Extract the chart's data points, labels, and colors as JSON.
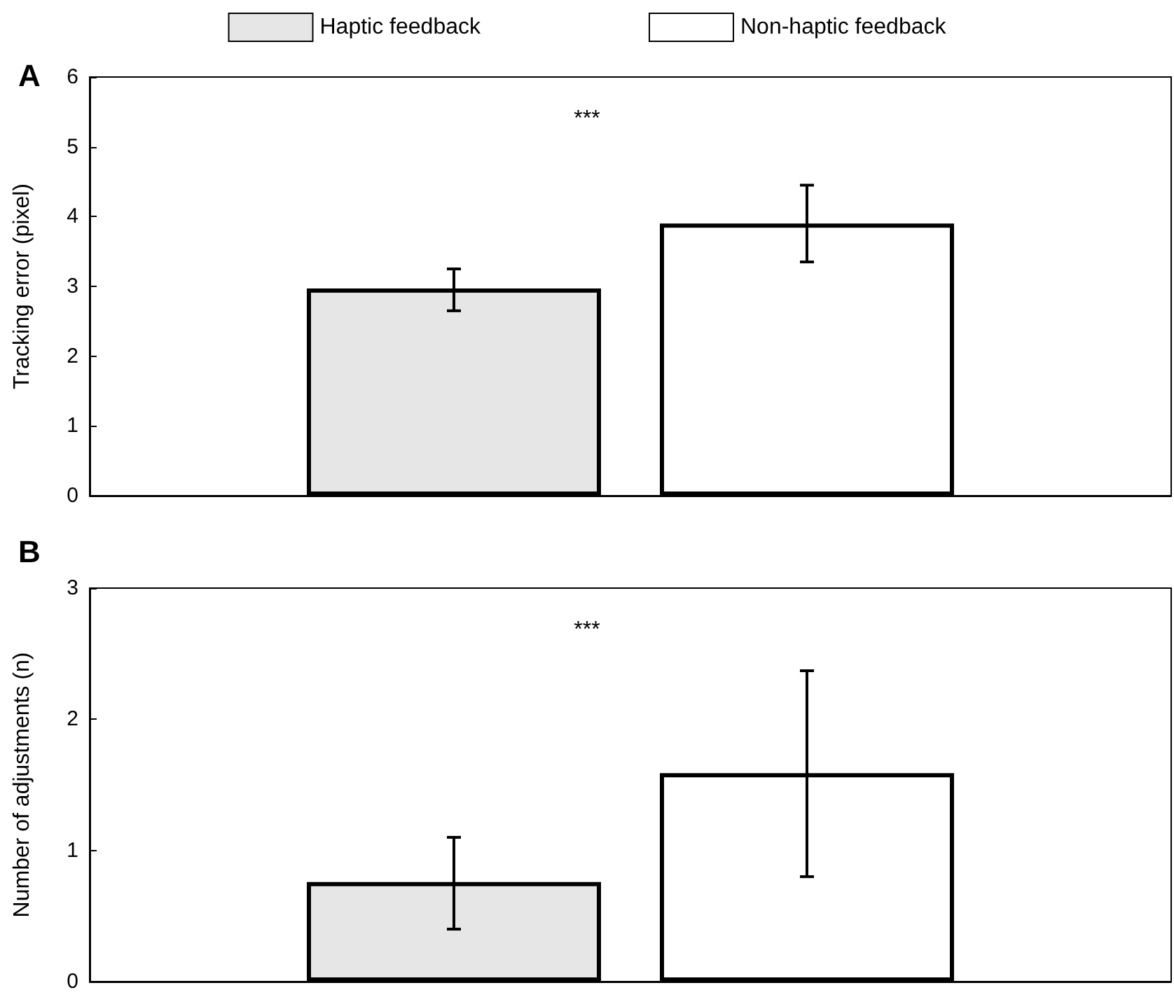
{
  "chart_data": [
    {
      "type": "bar",
      "title": "A",
      "ylabel": "Tracking error (pixel)",
      "categories": [
        null
      ],
      "legend": "top",
      "grid": false,
      "ylim": [
        0,
        6
      ],
      "yticks": [
        0,
        1,
        2,
        3,
        4,
        5,
        6
      ],
      "annotations": [
        "***"
      ],
      "series": [
        {
          "name": "Haptic feedback",
          "color": "#e6e6e6",
          "values": [
            2.97
          ],
          "errors": [
            [
              2.65,
              3.25
            ]
          ]
        },
        {
          "name": "Non-haptic feedback",
          "color": "#ffffff",
          "values": [
            3.9
          ],
          "errors": [
            [
              3.35,
              4.45
            ]
          ]
        }
      ]
    },
    {
      "type": "bar",
      "title": "B",
      "ylabel": "Number of adjustments (n)",
      "categories": [
        null
      ],
      "legend": false,
      "grid": false,
      "ylim": [
        0,
        3
      ],
      "yticks": [
        0,
        1,
        2,
        3
      ],
      "annotations": [
        "***"
      ],
      "series": [
        {
          "color": "#e6e6e6",
          "values": [
            0.76
          ],
          "errors": [
            [
              0.4,
              1.1
            ]
          ]
        },
        {
          "color": "#ffffff",
          "values": [
            1.59
          ],
          "errors": [
            [
              0.8,
              2.37
            ]
          ]
        }
      ]
    }
  ]
}
